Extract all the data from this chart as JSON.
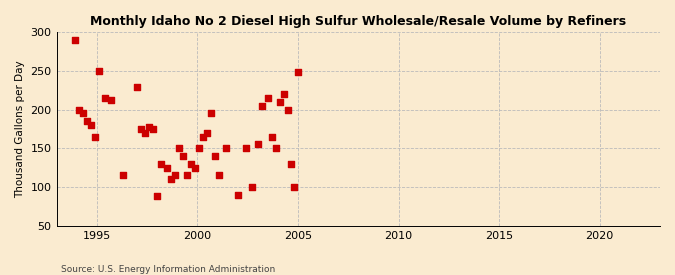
{
  "title": "Monthly Idaho No 2 Diesel High Sulfur Wholesale/Resale Volume by Refiners",
  "ylabel": "Thousand Gallons per Day",
  "source": "Source: U.S. Energy Information Administration",
  "bg_color": "#faebd0",
  "plot_bg_color": "#faebd0",
  "marker_color": "#cc0000",
  "xlim": [
    1993,
    2023
  ],
  "ylim": [
    50,
    300
  ],
  "xticks": [
    1995,
    2000,
    2005,
    2010,
    2015,
    2020
  ],
  "yticks": [
    50,
    100,
    150,
    200,
    250,
    300
  ],
  "scatter_x": [
    1993.9,
    1994.1,
    1994.3,
    1994.5,
    1994.7,
    1994.9,
    1995.1,
    1995.4,
    1995.7,
    1996.3,
    1997.0,
    1997.2,
    1997.4,
    1997.6,
    1997.8,
    1998.0,
    1998.2,
    1998.5,
    1998.7,
    1998.9,
    1999.1,
    1999.3,
    1999.5,
    1999.7,
    1999.9,
    2000.1,
    2000.3,
    2000.5,
    2000.7,
    2000.9,
    2001.1,
    2001.4,
    2002.0,
    2002.4,
    2002.7,
    2003.0,
    2003.2,
    2003.5,
    2003.7,
    2003.9,
    2004.1,
    2004.3,
    2004.5,
    2004.65,
    2004.8,
    2005.0
  ],
  "scatter_y": [
    290,
    200,
    195,
    185,
    180,
    165,
    250,
    215,
    212,
    115,
    229,
    175,
    170,
    178,
    175,
    88,
    130,
    125,
    110,
    115,
    150,
    140,
    115,
    130,
    125,
    150,
    165,
    170,
    195,
    140,
    115,
    150,
    90,
    150,
    100,
    155,
    205,
    215,
    165,
    150,
    210,
    220,
    200,
    130,
    100,
    248
  ]
}
